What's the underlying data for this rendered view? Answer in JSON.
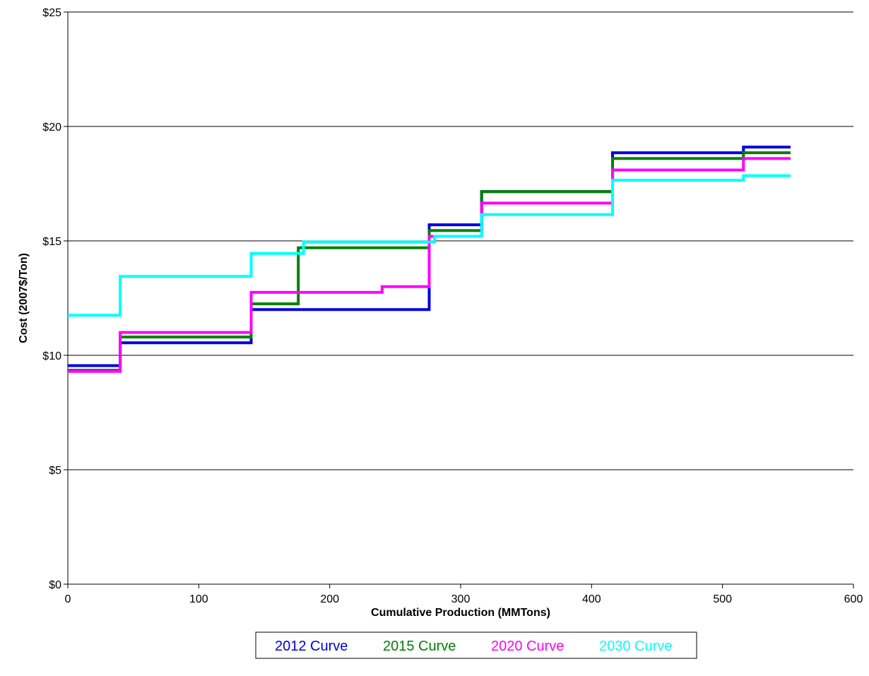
{
  "chart_data": {
    "type": "line",
    "step": true,
    "title": "",
    "xlabel": "Cumulative Production (MMTons)",
    "ylabel": "Cost (2007$/Ton)",
    "xlim": [
      0,
      600
    ],
    "ylim": [
      0,
      25
    ],
    "x_ticks": [
      0,
      100,
      200,
      300,
      400,
      500,
      600
    ],
    "x_tick_labels": [
      "0",
      "100",
      "200",
      "300",
      "400",
      "500",
      "600"
    ],
    "y_ticks": [
      0,
      5,
      10,
      15,
      20,
      25
    ],
    "y_tick_labels": [
      "$0",
      "$5",
      "$10",
      "$15",
      "$20",
      "$25"
    ],
    "grid": "horizontal",
    "legend_position": "bottom",
    "series": [
      {
        "name": "2012 Curve",
        "color": "#0000e0",
        "steps": [
          {
            "x0": 0,
            "x1": 40,
            "y": 9.55
          },
          {
            "x0": 40,
            "x1": 140,
            "y": 10.55
          },
          {
            "x0": 140,
            "x1": 276,
            "y": 12.0
          },
          {
            "x0": 276,
            "x1": 316,
            "y": 15.7
          },
          {
            "x0": 316,
            "x1": 416,
            "y": 17.15
          },
          {
            "x0": 416,
            "x1": 516,
            "y": 18.85
          },
          {
            "x0": 516,
            "x1": 552,
            "y": 19.1
          }
        ]
      },
      {
        "name": "2015 Curve",
        "color": "#008000",
        "steps": [
          {
            "x0": 0,
            "x1": 40,
            "y": 9.35
          },
          {
            "x0": 40,
            "x1": 140,
            "y": 10.8
          },
          {
            "x0": 140,
            "x1": 176,
            "y": 12.25
          },
          {
            "x0": 176,
            "x1": 276,
            "y": 14.7
          },
          {
            "x0": 276,
            "x1": 316,
            "y": 15.45
          },
          {
            "x0": 316,
            "x1": 416,
            "y": 17.15
          },
          {
            "x0": 416,
            "x1": 516,
            "y": 18.6
          },
          {
            "x0": 516,
            "x1": 552,
            "y": 18.85
          }
        ]
      },
      {
        "name": "2020 Curve",
        "color": "#ff00ff",
        "steps": [
          {
            "x0": 0,
            "x1": 40,
            "y": 9.3
          },
          {
            "x0": 40,
            "x1": 140,
            "y": 11.0
          },
          {
            "x0": 140,
            "x1": 240,
            "y": 12.75
          },
          {
            "x0": 240,
            "x1": 276,
            "y": 13.0
          },
          {
            "x0": 276,
            "x1": 316,
            "y": 15.2
          },
          {
            "x0": 316,
            "x1": 416,
            "y": 16.65
          },
          {
            "x0": 416,
            "x1": 516,
            "y": 18.1
          },
          {
            "x0": 516,
            "x1": 552,
            "y": 18.6
          }
        ]
      },
      {
        "name": "2030 Curve",
        "color": "#00ffff",
        "steps": [
          {
            "x0": 0,
            "x1": 40,
            "y": 11.75
          },
          {
            "x0": 40,
            "x1": 140,
            "y": 13.45
          },
          {
            "x0": 140,
            "x1": 180,
            "y": 14.45
          },
          {
            "x0": 180,
            "x1": 280,
            "y": 14.95
          },
          {
            "x0": 280,
            "x1": 316,
            "y": 15.2
          },
          {
            "x0": 316,
            "x1": 416,
            "y": 16.15
          },
          {
            "x0": 416,
            "x1": 516,
            "y": 17.65
          },
          {
            "x0": 516,
            "x1": 552,
            "y": 17.85
          }
        ]
      }
    ]
  }
}
